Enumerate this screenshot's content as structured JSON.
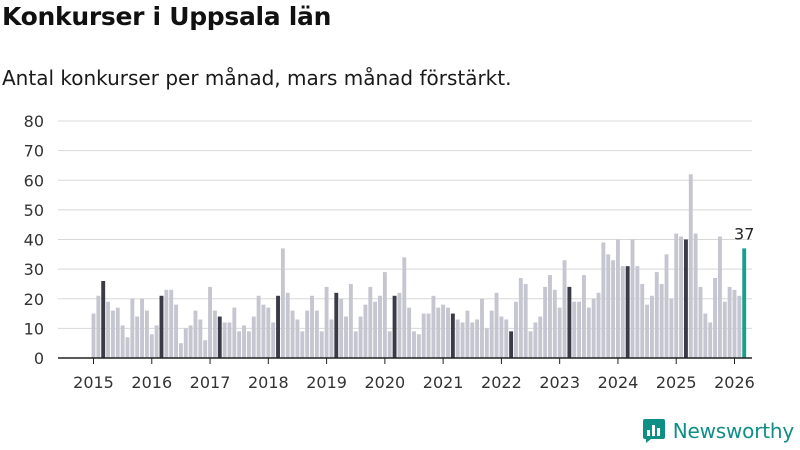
{
  "title": "Konkurser i Uppsala län",
  "subtitle": "Antal konkurser per månad, mars månad förstärkt.",
  "brand": {
    "name": "Newsworthy",
    "icon": "newsworthy-logo-icon"
  },
  "colors": {
    "bar": "#c6c6d1",
    "highlight": "#3b3a47",
    "latest": "#1a9e8e",
    "grid": "#d8d8d8",
    "axis": "#222222"
  },
  "chart_data": {
    "type": "bar",
    "title": "Konkurser i Uppsala län",
    "ylabel": "",
    "xlabel": "",
    "ylim": [
      0,
      80
    ],
    "yticks": [
      0,
      10,
      20,
      30,
      40,
      50,
      60,
      70,
      80
    ],
    "start": "2015-01",
    "highlight_month": "March",
    "x_labels": [
      "2015",
      "2016",
      "2017",
      "2018",
      "2019",
      "2020",
      "2021",
      "2022",
      "2023",
      "2024",
      "2025",
      "2026"
    ],
    "values": [
      15,
      21,
      26,
      19,
      16,
      17,
      11,
      7,
      20,
      14,
      20,
      16,
      8,
      11,
      21,
      23,
      23,
      18,
      5,
      10,
      11,
      16,
      13,
      6,
      24,
      16,
      14,
      12,
      12,
      17,
      9,
      11,
      9,
      14,
      21,
      18,
      17,
      12,
      21,
      37,
      22,
      16,
      13,
      9,
      16,
      21,
      16,
      9,
      24,
      13,
      22,
      20,
      14,
      25,
      9,
      14,
      18,
      24,
      19,
      21,
      29,
      9,
      21,
      22,
      34,
      17,
      9,
      8,
      15,
      15,
      21,
      17,
      18,
      17,
      15,
      13,
      12,
      16,
      12,
      13,
      20,
      10,
      16,
      22,
      14,
      13,
      9,
      19,
      27,
      25,
      9,
      12,
      14,
      24,
      28,
      23,
      17,
      33,
      24,
      19,
      19,
      28,
      17,
      20,
      22,
      39,
      35,
      33,
      40,
      31,
      31,
      40,
      31,
      25,
      18,
      21,
      29,
      25,
      35,
      20,
      42,
      41,
      40,
      62,
      42,
      24,
      15,
      12,
      27,
      41,
      19,
      24,
      23,
      21,
      37
    ],
    "latest_label": "37"
  }
}
